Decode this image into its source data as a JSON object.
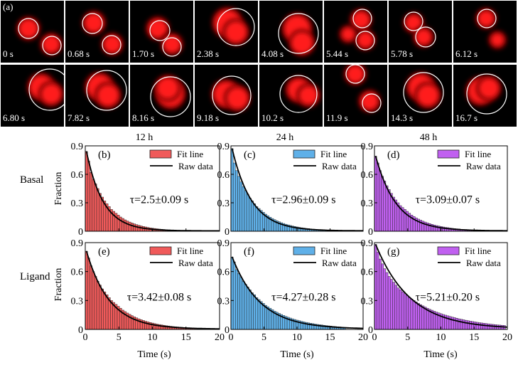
{
  "panel_a": {
    "label": "(a)",
    "frames": [
      {
        "time": "0 s"
      },
      {
        "time": "0.68 s"
      },
      {
        "time": "1.70 s"
      },
      {
        "time": "2.38 s"
      },
      {
        "time": "4.08 s"
      },
      {
        "time": "5.44 s"
      },
      {
        "time": "5.78 s"
      },
      {
        "time": "6.12 s"
      },
      {
        "time": "6.80 s"
      },
      {
        "time": "7.82 s"
      },
      {
        "time": "8.16 s"
      },
      {
        "time": "9.18 s"
      },
      {
        "time": "10.2 s"
      },
      {
        "time": "11.9 s"
      },
      {
        "time": "14.3 s"
      },
      {
        "time": "16.7 s"
      }
    ],
    "colors": {
      "background": "#000000",
      "spot": "#ff1a1a",
      "circle": "#ffffff"
    }
  },
  "column_headers": [
    "12 h",
    "24 h",
    "48 h"
  ],
  "row_labels": [
    "Basal",
    "Ligand"
  ],
  "legend": {
    "fit": "Fit line",
    "raw": "Raw data"
  },
  "axis": {
    "xlabel": "Time (s)",
    "ylabel": "Fraction",
    "xticks": [
      "0",
      "5",
      "10",
      "15",
      "20"
    ],
    "yticks": [
      "0",
      "0.3",
      "0.6",
      "0.9"
    ]
  },
  "colors": {
    "12h": "#f05a5a",
    "24h": "#5fb0e8",
    "48h": "#c060f0"
  },
  "chart_data": [
    {
      "type": "bar",
      "panel": "(b)",
      "column": "12 h",
      "row": "Basal",
      "color": "#f05a5a",
      "tau": "τ=2.5±0.09 s",
      "tau_value": 2.5,
      "xlim": [
        0,
        20
      ],
      "ylim": [
        0,
        0.9
      ],
      "bin_width": 0.34,
      "values": [
        0.84,
        0.74,
        0.62,
        0.55,
        0.5,
        0.45,
        0.4,
        0.36,
        0.32,
        0.29,
        0.26,
        0.23,
        0.21,
        0.19,
        0.17,
        0.15,
        0.135,
        0.12,
        0.108,
        0.097,
        0.087,
        0.078,
        0.07,
        0.063,
        0.056,
        0.05,
        0.045,
        0.04,
        0.036,
        0.032,
        0.029,
        0.026,
        0.023,
        0.021,
        0.019,
        0.017,
        0.015,
        0.013,
        0.012,
        0.011,
        0.0095,
        0.0085,
        0.0076,
        0.0068,
        0.006
      ]
    },
    {
      "type": "bar",
      "panel": "(c)",
      "column": "24 h",
      "row": "Basal",
      "color": "#5fb0e8",
      "tau": "τ=2.96±0.09 s",
      "tau_value": 2.96,
      "xlim": [
        0,
        20
      ],
      "ylim": [
        0,
        0.9
      ],
      "bin_width": 0.34,
      "values": [
        0.87,
        0.72,
        0.64,
        0.58,
        0.52,
        0.47,
        0.43,
        0.39,
        0.35,
        0.32,
        0.29,
        0.26,
        0.24,
        0.22,
        0.2,
        0.18,
        0.163,
        0.148,
        0.134,
        0.122,
        0.11,
        0.1,
        0.09,
        0.082,
        0.074,
        0.067,
        0.061,
        0.055,
        0.05,
        0.045,
        0.041,
        0.037,
        0.034,
        0.03,
        0.028,
        0.025,
        0.022,
        0.02,
        0.018,
        0.016,
        0.015,
        0.013,
        0.012,
        0.011,
        0.01,
        0.009,
        0.008,
        0.007,
        0.0065,
        0.006
      ]
    },
    {
      "type": "bar",
      "panel": "(d)",
      "column": "48 h",
      "row": "Basal",
      "color": "#c060f0",
      "tau": "τ=3.09±0.07 s",
      "tau_value": 3.09,
      "xlim": [
        0,
        20
      ],
      "ylim": [
        0,
        0.9
      ],
      "bin_width": 0.34,
      "values": [
        0.79,
        0.72,
        0.64,
        0.58,
        0.53,
        0.48,
        0.44,
        0.4,
        0.36,
        0.33,
        0.3,
        0.27,
        0.25,
        0.23,
        0.21,
        0.19,
        0.17,
        0.155,
        0.141,
        0.128,
        0.117,
        0.106,
        0.097,
        0.088,
        0.08,
        0.073,
        0.066,
        0.06,
        0.055,
        0.05,
        0.045,
        0.041,
        0.038,
        0.034,
        0.031,
        0.028,
        0.026,
        0.024,
        0.021,
        0.019,
        0.018,
        0.016,
        0.015,
        0.013,
        0.012,
        0.011,
        0.01,
        0.009,
        0.008,
        0.0075,
        0.007,
        0.006
      ]
    },
    {
      "type": "bar",
      "panel": "(e)",
      "column": "12 h",
      "row": "Ligand",
      "color": "#f05a5a",
      "tau": "τ=3.42±0.08 s",
      "tau_value": 3.42,
      "xlim": [
        0,
        20
      ],
      "ylim": [
        0,
        0.9
      ],
      "bin_width": 0.34,
      "values": [
        0.81,
        0.74,
        0.66,
        0.6,
        0.55,
        0.5,
        0.46,
        0.42,
        0.39,
        0.36,
        0.33,
        0.3,
        0.28,
        0.26,
        0.24,
        0.22,
        0.2,
        0.185,
        0.17,
        0.156,
        0.143,
        0.131,
        0.12,
        0.11,
        0.101,
        0.093,
        0.085,
        0.078,
        0.072,
        0.066,
        0.06,
        0.055,
        0.051,
        0.047,
        0.043,
        0.039,
        0.036,
        0.033,
        0.03,
        0.028,
        0.026,
        0.024,
        0.022,
        0.02,
        0.018,
        0.017,
        0.015,
        0.014,
        0.013,
        0.012,
        0.011,
        0.01,
        0.009,
        0.008
      ]
    },
    {
      "type": "bar",
      "panel": "(f)",
      "column": "24 h",
      "row": "Ligand",
      "color": "#5fb0e8",
      "tau": "τ=4.27±0.28 s",
      "tau_value": 4.27,
      "xlim": [
        0,
        20
      ],
      "ylim": [
        0,
        0.9
      ],
      "bin_width": 0.34,
      "values": [
        0.75,
        0.7,
        0.62,
        0.58,
        0.54,
        0.5,
        0.47,
        0.44,
        0.41,
        0.38,
        0.36,
        0.33,
        0.31,
        0.29,
        0.27,
        0.25,
        0.235,
        0.22,
        0.205,
        0.19,
        0.178,
        0.166,
        0.155,
        0.145,
        0.135,
        0.126,
        0.118,
        0.11,
        0.103,
        0.096,
        0.09,
        0.084,
        0.078,
        0.073,
        0.068,
        0.064,
        0.06,
        0.056,
        0.052,
        0.049,
        0.046,
        0.043,
        0.04,
        0.037,
        0.035,
        0.032,
        0.03,
        0.028,
        0.026,
        0.024,
        0.022
      ]
    },
    {
      "type": "bar",
      "panel": "(g)",
      "column": "48 h",
      "row": "Ligand",
      "color": "#c060f0",
      "tau": "τ=5.21±0.20 s",
      "tau_value": 5.21,
      "xlim": [
        0,
        20
      ],
      "ylim": [
        0,
        0.9
      ],
      "bin_width": 0.34,
      "values": [
        0.88,
        0.8,
        0.73,
        0.68,
        0.63,
        0.59,
        0.55,
        0.52,
        0.49,
        0.46,
        0.43,
        0.41,
        0.39,
        0.37,
        0.35,
        0.33,
        0.315,
        0.3,
        0.285,
        0.27,
        0.257,
        0.244,
        0.232,
        0.22,
        0.209,
        0.199,
        0.189,
        0.18,
        0.171,
        0.163,
        0.155,
        0.148,
        0.141,
        0.134,
        0.128,
        0.122,
        0.116,
        0.11,
        0.105,
        0.1,
        0.095,
        0.09,
        0.086,
        0.082,
        0.078,
        0.074,
        0.07,
        0.067,
        0.064,
        0.061,
        0.058,
        0.055,
        0.052,
        0.05,
        0.047,
        0.045,
        0.043,
        0.041
      ]
    }
  ]
}
